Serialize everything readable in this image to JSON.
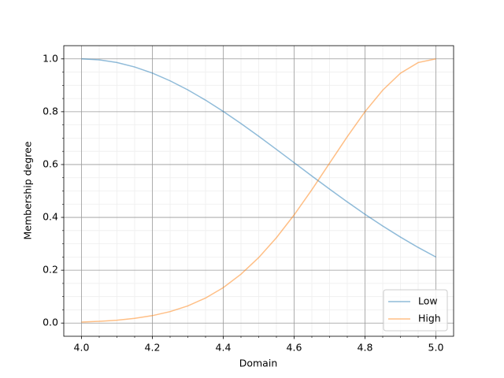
{
  "chart_data": {
    "type": "line",
    "xlabel": "Domain",
    "ylabel": "Membership degree",
    "x": [
      4.0,
      4.05,
      4.1,
      4.15,
      4.2,
      4.25,
      4.3,
      4.35,
      4.4,
      4.45,
      4.5,
      4.55,
      4.6,
      4.65,
      4.7,
      4.75,
      4.8,
      4.85,
      4.9,
      4.95,
      5.0
    ],
    "series": [
      {
        "name": "Low",
        "color": "#1f77b4",
        "values": [
          1,
          0.9965,
          0.9862,
          0.9693,
          0.9461,
          0.917,
          0.8827,
          0.8438,
          0.8011,
          0.7552,
          0.7071,
          0.6575,
          0.6071,
          0.5567,
          0.507,
          0.4585,
          0.4118,
          0.3673,
          0.3254,
          0.2862,
          0.25
        ]
      },
      {
        "name": "High",
        "color": "#ff7f0e",
        "values": [
          0.0038,
          0.0065,
          0.0109,
          0.0177,
          0.0281,
          0.0433,
          0.065,
          0.0947,
          0.1341,
          0.1849,
          0.2478,
          0.3231,
          0.4094,
          0.5046,
          0.6053,
          0.7054,
          0.8001,
          0.8816,
          0.9457,
          0.9861,
          1
        ]
      }
    ],
    "xlim": [
      3.95,
      5.05
    ],
    "ylim": [
      -0.05,
      1.05
    ],
    "xticks": [
      {
        "value": 4.0,
        "label": "4.0"
      },
      4.2,
      4.4,
      4.6,
      4.8,
      {
        "value": 5.0,
        "label": "5.0"
      }
    ],
    "yticks": [
      {
        "value": 0.0,
        "label": "0.0"
      },
      0.2,
      0.4,
      0.6,
      0.8,
      {
        "value": 1.0,
        "label": "1.0"
      }
    ],
    "xminorticks": [
      4.05,
      4.1,
      4.15,
      4.25,
      4.3,
      4.35,
      4.45,
      4.5,
      4.55,
      4.65,
      4.7,
      4.75,
      4.85,
      4.9,
      4.95
    ],
    "yminorticks": [
      0.05,
      0.1,
      0.15,
      0.25,
      0.3,
      0.35,
      0.45,
      0.5,
      0.55,
      0.65,
      0.7,
      0.75,
      0.85,
      0.9,
      0.95
    ],
    "grid": true,
    "line_opacity": 0.5,
    "legend": "lower right"
  }
}
